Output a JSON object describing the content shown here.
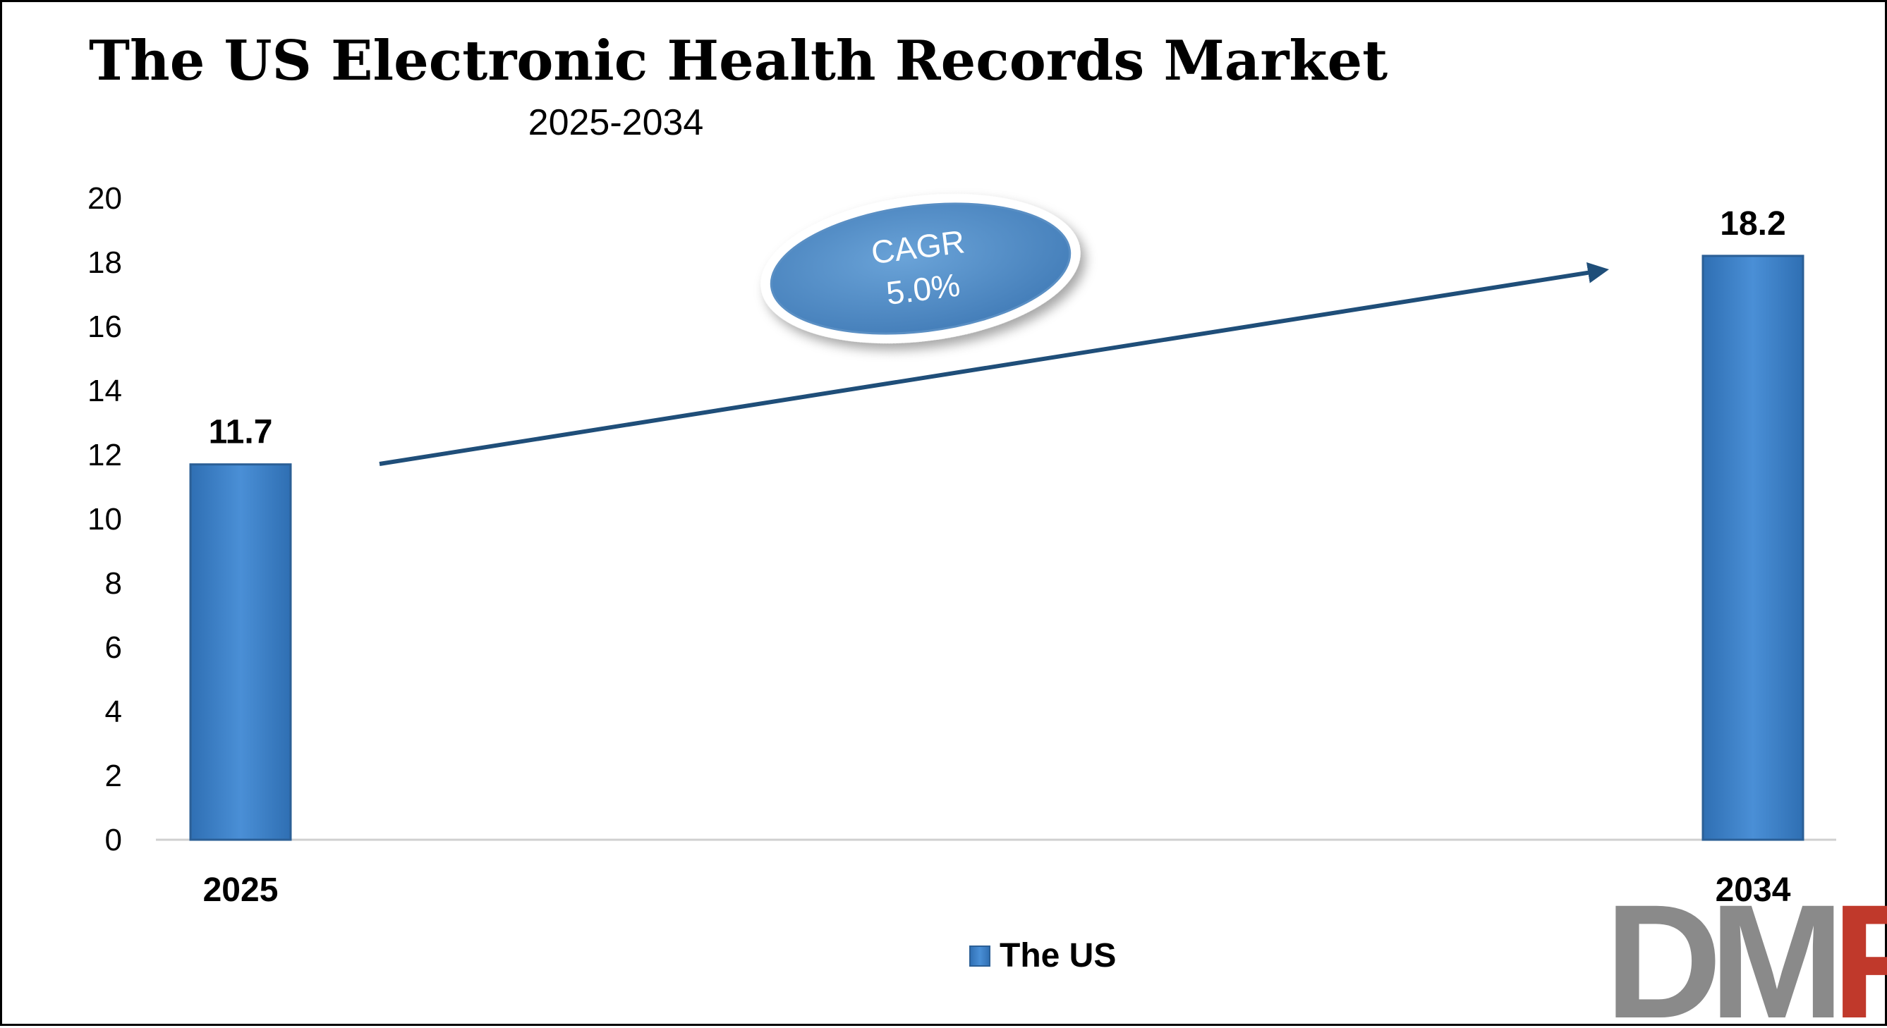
{
  "chart_data": {
    "type": "bar",
    "title": "The US Electronic Health Records Market",
    "subtitle": "2025-2034",
    "categories": [
      "2025",
      "2034"
    ],
    "series": [
      {
        "name": "The US",
        "values": [
          11.7,
          18.2
        ],
        "labels": [
          "11.7",
          "18.2"
        ]
      }
    ],
    "ylim": [
      0,
      20
    ],
    "yticks": [
      0,
      2,
      4,
      6,
      8,
      10,
      12,
      14,
      16,
      18,
      20
    ],
    "grid": false,
    "legend_position": "bottom-center",
    "annotation": {
      "line1": "CAGR",
      "line2": "5.0%"
    },
    "colors": {
      "bar": "#3a7ec6",
      "bar_edge": "#2b5f96",
      "arrow": "#1f4e79",
      "ellipse": "#5b96cf"
    }
  },
  "logo": {
    "text_left": "DM",
    "text_right": "R",
    "color_left": "#8a8a8a",
    "color_right": "#c0392b"
  }
}
